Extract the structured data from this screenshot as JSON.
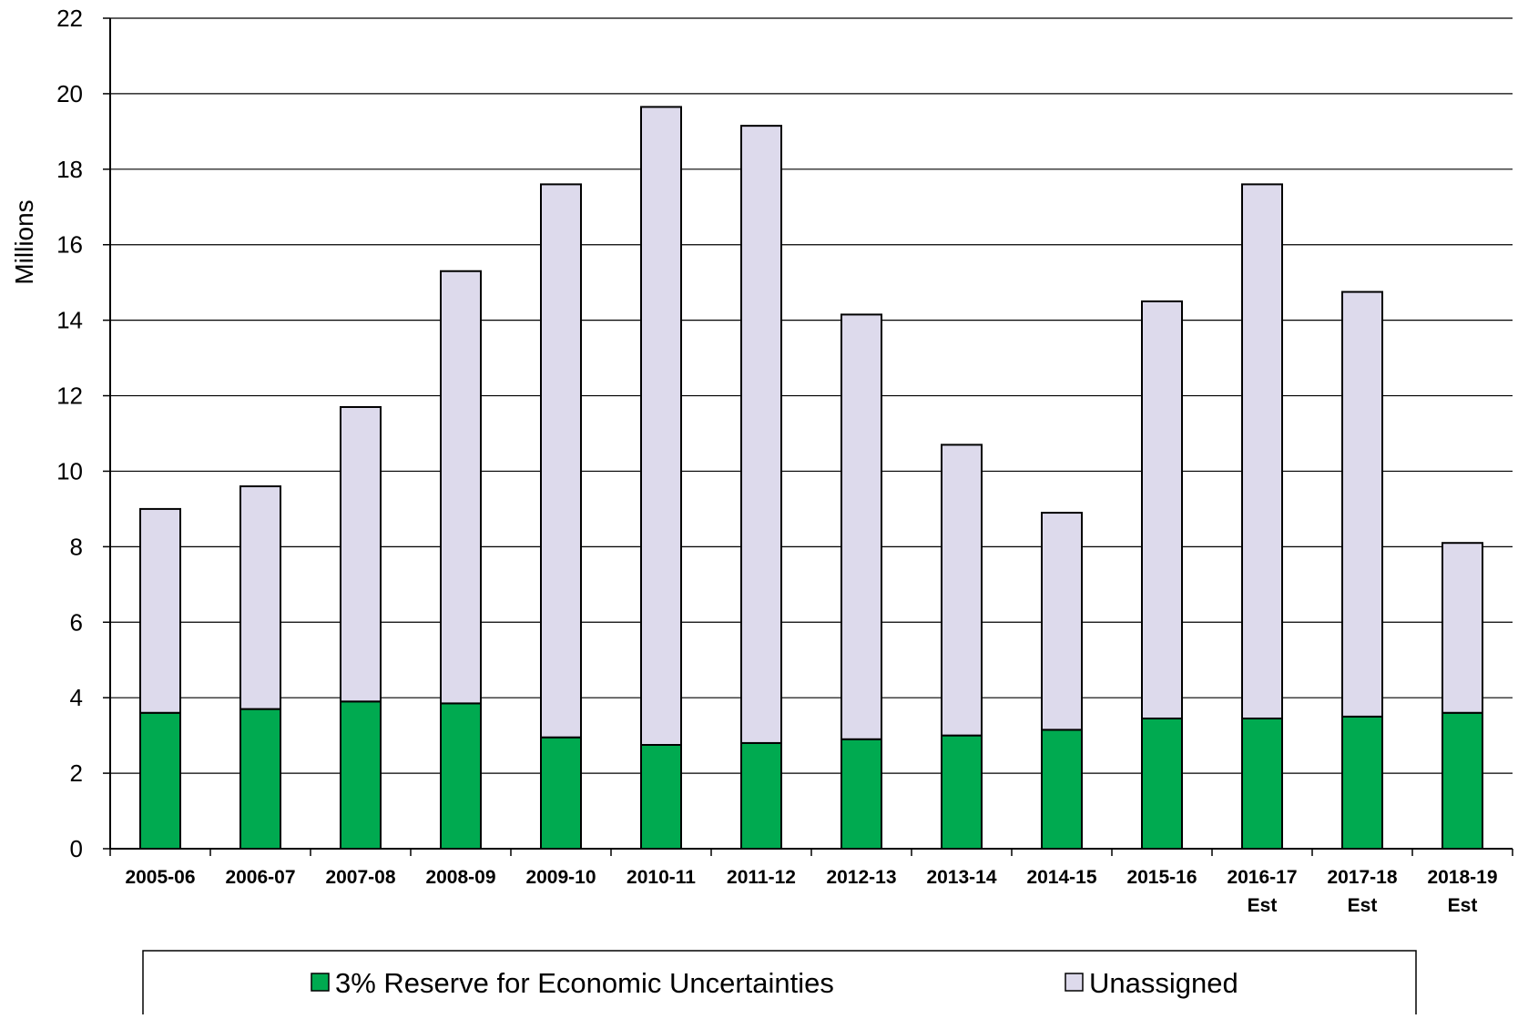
{
  "chart_data": {
    "type": "bar",
    "stacked": true,
    "title": "",
    "xlabel": "",
    "ylabel": "Millions",
    "ylim": [
      0,
      22
    ],
    "yticks": [
      0,
      2,
      4,
      6,
      8,
      10,
      12,
      14,
      16,
      18,
      20,
      22
    ],
    "grid": "horizontal",
    "legend_position": "bottom",
    "categories": [
      [
        "2005-06"
      ],
      [
        "2006-07"
      ],
      [
        "2007-08"
      ],
      [
        "2008-09"
      ],
      [
        "2009-10"
      ],
      [
        "2010-11"
      ],
      [
        "2011-12"
      ],
      [
        "2012-13"
      ],
      [
        "2013-14"
      ],
      [
        "2014-15"
      ],
      [
        "2015-16"
      ],
      [
        "2016-17",
        "Est"
      ],
      [
        "2017-18",
        "Est"
      ],
      [
        "2018-19",
        "Est"
      ]
    ],
    "series": [
      {
        "name": "3% Reserve for Economic Uncertainties",
        "color": "#00AA50",
        "values": [
          3.6,
          3.7,
          3.9,
          3.85,
          2.95,
          2.75,
          2.8,
          2.9,
          3.0,
          3.15,
          3.45,
          3.45,
          3.5,
          3.6
        ]
      },
      {
        "name": "Unassigned",
        "color": "#DDDAEC",
        "values": [
          5.4,
          5.9,
          7.8,
          11.45,
          14.65,
          16.9,
          16.35,
          11.25,
          7.7,
          5.75,
          11.05,
          14.15,
          11.25,
          4.5
        ]
      }
    ],
    "totals": [
      9.0,
      9.6,
      11.7,
      15.3,
      17.6,
      19.65,
      19.15,
      14.15,
      10.7,
      8.9,
      14.5,
      17.6,
      14.75,
      8.1
    ]
  }
}
